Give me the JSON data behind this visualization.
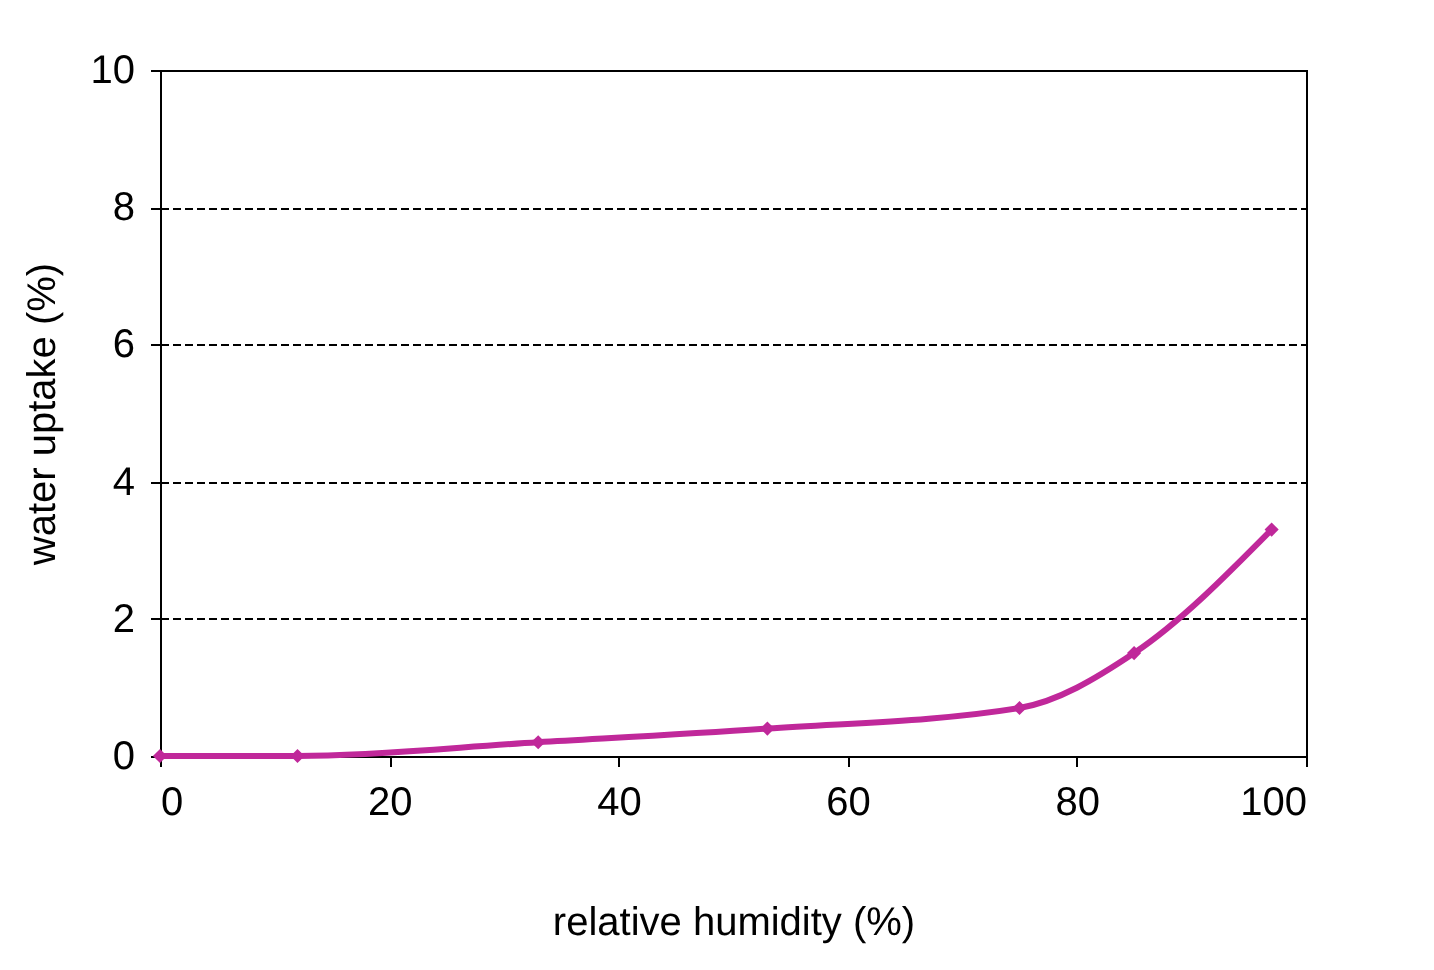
{
  "chart_data": {
    "type": "line",
    "xlabel": "relative humidity (%)",
    "ylabel": "water uptake (%)",
    "x": [
      0,
      12,
      33,
      53,
      75,
      85,
      97
    ],
    "series": [
      {
        "color": "#c0289a",
        "values": [
          0,
          0,
          0.2,
          0.4,
          0.7,
          1.5,
          3.3
        ]
      }
    ],
    "xlim": [
      0,
      100
    ],
    "xticks": [
      0,
      20,
      40,
      60,
      80,
      100
    ],
    "ylim": [
      0,
      10
    ],
    "yticks": [
      0,
      2,
      4,
      6,
      8,
      10
    ],
    "grid": "y",
    "marker": "diamond",
    "line_style": "solid",
    "legend": false
  }
}
